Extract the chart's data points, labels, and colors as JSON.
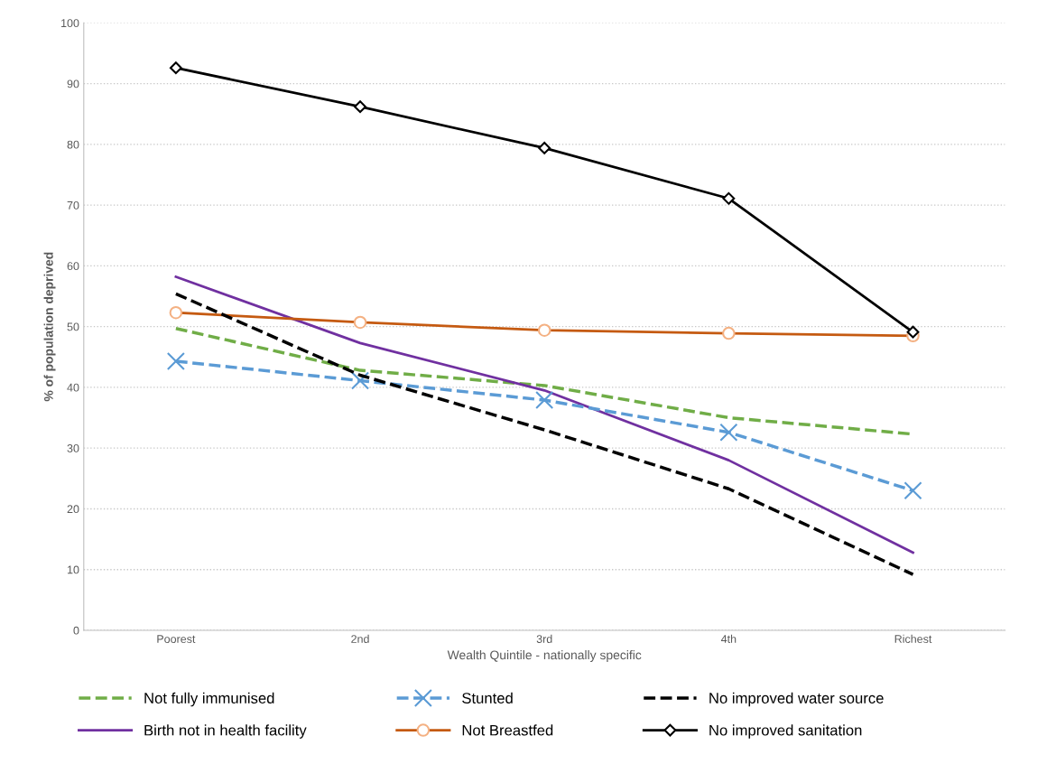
{
  "chart_data": {
    "type": "line",
    "xlabel": "Wealth Quintile - nationally specific",
    "ylabel": "% of population deprived",
    "categories": [
      "Poorest",
      "2nd",
      "3rd",
      "4th",
      "Richest"
    ],
    "ylim": [
      0,
      100
    ],
    "yticks": [
      0,
      10,
      20,
      30,
      40,
      50,
      60,
      70,
      80,
      90,
      100
    ],
    "grid": "y",
    "legend": "bottom",
    "series": [
      {
        "name": "Not fully immunised",
        "color": "#70ad47",
        "line_style": "dashed",
        "marker": "none",
        "values": [
          49.7,
          42.8,
          40.3,
          35.0,
          32.3
        ]
      },
      {
        "name": "Birth not in health facility",
        "color": "#7030a0",
        "line_style": "solid",
        "marker": "none",
        "values": [
          58.2,
          47.3,
          39.5,
          28.0,
          12.8
        ]
      },
      {
        "name": "Stunted",
        "color": "#5b9bd5",
        "line_style": "dashed",
        "marker": "cross",
        "values": [
          44.3,
          41.1,
          37.9,
          32.6,
          23.0
        ]
      },
      {
        "name": "Not Breastfed",
        "color": "#c55a11",
        "line_style": "solid",
        "marker": "circle",
        "values": [
          52.3,
          50.7,
          49.4,
          48.9,
          48.5
        ]
      },
      {
        "name": "No improved water source",
        "color": "#000000",
        "line_style": "dashed",
        "marker": "none",
        "values": [
          55.4,
          42.0,
          33.0,
          23.3,
          9.2
        ]
      },
      {
        "name": "No improved sanitation",
        "color": "#000000",
        "line_style": "solid",
        "marker": "diamond",
        "values": [
          92.6,
          86.2,
          79.4,
          71.1,
          49.1
        ]
      }
    ]
  }
}
